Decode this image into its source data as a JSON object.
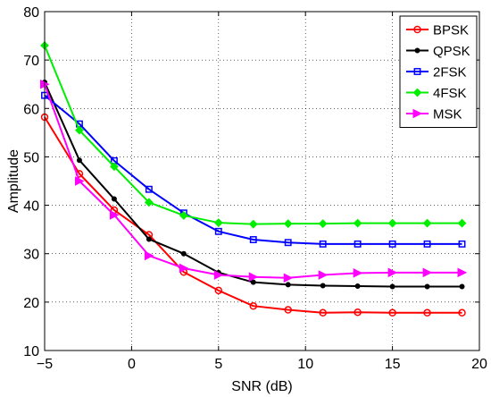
{
  "chart_data": {
    "type": "line",
    "title": "",
    "xlabel": "SNR (dB)",
    "ylabel": "Amplitude",
    "xlim": [
      -5,
      20
    ],
    "ylim": [
      10,
      80
    ],
    "xticks": [
      -5,
      0,
      5,
      10,
      15,
      20
    ],
    "yticks": [
      10,
      20,
      30,
      40,
      50,
      60,
      70,
      80
    ],
    "grid": true,
    "legend_position": "top-right",
    "x": [
      -5,
      -3,
      -1,
      1,
      3,
      5,
      7,
      9,
      11,
      13,
      15,
      17,
      19
    ],
    "series": [
      {
        "name": "BPSK",
        "color": "#ff0000",
        "marker": "circle",
        "values": [
          58.2,
          46.5,
          39.0,
          33.9,
          26.2,
          22.4,
          19.2,
          18.4,
          17.8,
          17.9,
          17.8,
          17.8,
          17.8
        ]
      },
      {
        "name": "QPSK",
        "color": "#000000",
        "marker": "dot",
        "values": [
          65.4,
          49.3,
          41.3,
          33.0,
          30.0,
          26.1,
          24.1,
          23.6,
          23.4,
          23.3,
          23.2,
          23.2,
          23.2
        ]
      },
      {
        "name": "2FSK",
        "color": "#0000ff",
        "marker": "square",
        "values": [
          62.7,
          56.8,
          49.2,
          43.3,
          38.4,
          34.6,
          32.9,
          32.3,
          32.0,
          32.0,
          32.0,
          32.0,
          32.0
        ]
      },
      {
        "name": "4FSK",
        "color": "#00ee00",
        "marker": "diamond",
        "values": [
          73.0,
          55.5,
          48.0,
          40.6,
          37.9,
          36.4,
          36.1,
          36.2,
          36.2,
          36.3,
          36.3,
          36.3,
          36.3
        ]
      },
      {
        "name": "MSK",
        "color": "#ff00ff",
        "marker": "triangle-right",
        "values": [
          65.0,
          45.0,
          38.0,
          29.6,
          27.0,
          25.6,
          25.2,
          25.0,
          25.6,
          26.0,
          26.1,
          26.1,
          26.1
        ]
      }
    ]
  }
}
